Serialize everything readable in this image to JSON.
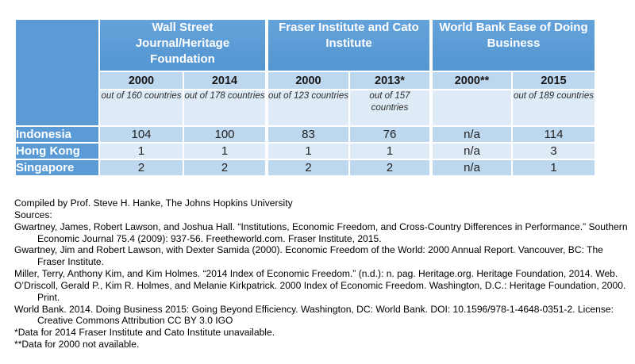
{
  "table": {
    "groups": [
      {
        "label": "Wall Street Journal/Heritage Foundation",
        "lines": [
          "Wall Street",
          "Journal/Heritage",
          "Foundation"
        ]
      },
      {
        "label": "Fraser Institute and Cato Institute",
        "lines": [
          "Fraser Institute and Cato",
          "Institute"
        ]
      },
      {
        "label": "World Bank Ease of Doing Business",
        "lines": [
          "World Bank Ease of Doing",
          "Business"
        ]
      }
    ],
    "years": [
      "2000",
      "2014",
      "2000",
      "2013*",
      "2000**",
      "2015"
    ],
    "out_of": [
      "out of 160 countries",
      "out of 178 countries",
      "out of 123 countries",
      "out of 157 countries",
      "",
      "out of 189 countries"
    ],
    "rows": [
      {
        "country": "Indonesia",
        "values": [
          "104",
          "100",
          "83",
          "76",
          "n/a",
          "114"
        ]
      },
      {
        "country": "Hong Kong",
        "values": [
          "1",
          "1",
          "1",
          "1",
          "n/a",
          "3"
        ]
      },
      {
        "country": "Singapore",
        "values": [
          "2",
          "2",
          "2",
          "2",
          "n/a",
          "1"
        ]
      }
    ]
  },
  "colors": {
    "header_blue": "#5b9bd5",
    "band_dark": "#bdd7ee",
    "band_light": "#deeaf6",
    "border_white": "#ffffff"
  },
  "footer": {
    "lines": [
      {
        "text": "Compiled by Prof. Steve H. Hanke, The Johns Hopkins University",
        "indent": false
      },
      {
        "text": "Sources:",
        "indent": false
      },
      {
        "text": "Gwartney, James, Robert Lawson, and Joshua Hall. “Institutions, Economic Freedom, and Cross-Country Differences in Performance.” Southern",
        "indent": false
      },
      {
        "text": "Economic Journal 75.4 (2009): 937-56. Freetheworld.com. Fraser Institute, 2015.",
        "indent": true
      },
      {
        "text": "Gwartney, Jim and Robert Lawson, with Dexter Samida (2000). Economic Freedom of the World: 2000 Annual Report. Vancouver, BC: The",
        "indent": false
      },
      {
        "text": "Fraser Institute.",
        "indent": true
      },
      {
        "text": "Miller, Terry, Anthony Kim, and Kim Holmes. “2014 Index of Economic Freedom.” (n.d.): n. pag. Heritage.org. Heritage Foundation, 2014. Web.",
        "indent": false
      },
      {
        "text": "O’Driscoll, Gerald P., Kim R. Holmes, and Melanie Kirkpatrick. 2000 Index of Economic Freedom. Washington, D.C.: Heritage Foundation, 2000.",
        "indent": false
      },
      {
        "text": "Print.",
        "indent": true
      },
      {
        "text": "World Bank. 2014. Doing Business 2015: Going Beyond Efficiency. Washington, DC: World Bank. DOI: 10.1596/978-1-4648-0351-2. License:",
        "indent": false
      },
      {
        "text": "Creative Commons Attribution CC BY 3.0 IGO",
        "indent": true
      },
      {
        "text": "*Data for 2014 Fraser Institute and Cato Institute unavailable.",
        "indent": false
      },
      {
        "text": "**Data for 2000 not available.",
        "indent": false
      }
    ]
  }
}
